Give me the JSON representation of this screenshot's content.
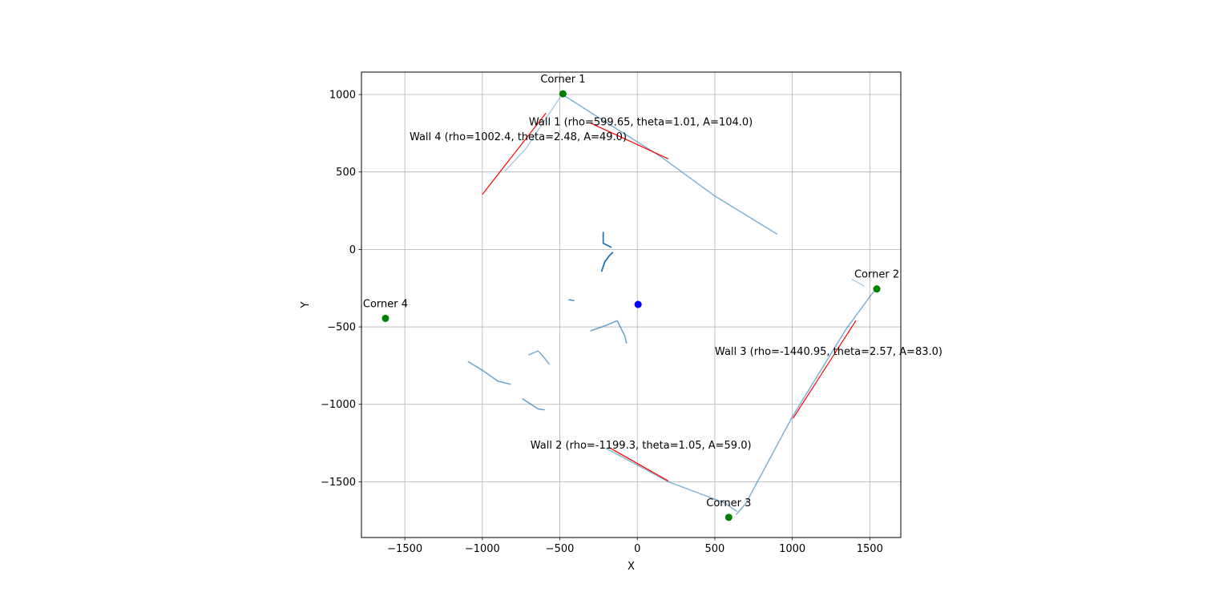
{
  "chart_data": {
    "type": "scatter",
    "title": "",
    "xlabel": "X",
    "ylabel": "Y",
    "xlim": [
      -1780,
      1700
    ],
    "ylim": [
      -1860,
      1145
    ],
    "xticks": [
      -1500,
      -1000,
      -500,
      0,
      500,
      1000,
      1500
    ],
    "yticks": [
      1000,
      500,
      0,
      -500,
      -1000,
      -1500
    ],
    "xtick_labels": [
      "−1500",
      "−1000",
      "−500",
      "0",
      "500",
      "1000",
      "1500"
    ],
    "ytick_labels": [
      "1000",
      "500",
      "0",
      "−500",
      "−1000",
      "−1500"
    ],
    "grid": true,
    "colors": {
      "scan": "#1f77b4",
      "wall": "#ff0000",
      "corner": "#008000",
      "robot": "#0000ff",
      "grid": "#b0b0b0"
    },
    "scan_segments": [
      {
        "points": [
          [
            -490,
            1005
          ],
          [
            -200,
            820
          ],
          [
            150,
            600
          ],
          [
            500,
            345
          ],
          [
            900,
            100
          ]
        ],
        "n": 220,
        "alpha": 0.55
      },
      {
        "points": [
          [
            -500,
            980
          ],
          [
            -720,
            650
          ],
          [
            -850,
            510
          ]
        ],
        "n": 60,
        "alpha": 0.45
      },
      {
        "points": [
          [
            1530,
            -265
          ],
          [
            1350,
            -510
          ],
          [
            1000,
            -1080
          ],
          [
            700,
            -1640
          ],
          [
            640,
            -1710
          ]
        ],
        "n": 230,
        "alpha": 0.55
      },
      {
        "points": [
          [
            1390,
            -195
          ],
          [
            1460,
            -235
          ]
        ],
        "n": 8,
        "alpha": 0.5
      },
      {
        "points": [
          [
            -200,
            -1285
          ],
          [
            200,
            -1500
          ],
          [
            560,
            -1635
          ],
          [
            640,
            -1690
          ]
        ],
        "n": 130,
        "alpha": 0.5
      },
      {
        "points": [
          [
            -1090,
            -725
          ],
          [
            -1000,
            -780
          ],
          [
            -900,
            -850
          ],
          [
            -820,
            -870
          ]
        ],
        "n": 55,
        "alpha": 0.55
      },
      {
        "points": [
          [
            -740,
            -965
          ],
          [
            -640,
            -1030
          ],
          [
            -600,
            -1035
          ]
        ],
        "n": 30,
        "alpha": 0.55
      },
      {
        "points": [
          [
            -700,
            -680
          ],
          [
            -640,
            -655
          ],
          [
            -600,
            -700
          ],
          [
            -570,
            -740
          ]
        ],
        "n": 26,
        "alpha": 0.55
      },
      {
        "points": [
          [
            -300,
            -525
          ],
          [
            -200,
            -490
          ],
          [
            -130,
            -460
          ],
          [
            -80,
            -560
          ],
          [
            -70,
            -605
          ]
        ],
        "n": 60,
        "alpha": 0.55
      },
      {
        "points": [
          [
            -440,
            -325
          ],
          [
            -410,
            -330
          ]
        ],
        "n": 5,
        "alpha": 0.8
      },
      {
        "points": [
          [
            -230,
            -140
          ],
          [
            -210,
            -80
          ],
          [
            -180,
            -40
          ],
          [
            -160,
            -20
          ]
        ],
        "n": 45,
        "alpha": 1.0
      },
      {
        "points": [
          [
            -220,
            110
          ],
          [
            -220,
            40
          ],
          [
            -200,
            30
          ],
          [
            -170,
            15
          ]
        ],
        "n": 35,
        "alpha": 1.0
      }
    ],
    "walls": [
      {
        "label": "Wall 1 (rho=599.65, theta=1.01, A=104.0)",
        "start": [
          -300,
          815
        ],
        "end": [
          200,
          585
        ],
        "label_at": [
          -700,
          800
        ]
      },
      {
        "label": "Wall 2 (rho=-1199.3, theta=1.05, A=59.0)",
        "start": [
          -180,
          -1280
        ],
        "end": [
          200,
          -1495
        ],
        "label_at": [
          -690,
          -1285
        ]
      },
      {
        "label": "Wall 3 (rho=-1440.95, theta=2.57, A=83.0)",
        "start": [
          1410,
          -460
        ],
        "end": [
          1005,
          -1090
        ],
        "label_at": [
          500,
          -680
        ]
      },
      {
        "label": "Wall 4 (rho=1002.4, theta=2.48, A=49.0)",
        "start": [
          -1000,
          355
        ],
        "end": [
          -590,
          880
        ],
        "label_at": [
          -1470,
          705
        ]
      }
    ],
    "corners": [
      {
        "label": "Corner 1",
        "x": -480,
        "y": 1005
      },
      {
        "label": "Corner 2",
        "x": 1545,
        "y": -255
      },
      {
        "label": "Corner 3",
        "x": 590,
        "y": -1730
      },
      {
        "label": "Corner 4",
        "x": -1625,
        "y": -445
      }
    ],
    "robot": {
      "x": 5,
      "y": -355
    }
  }
}
